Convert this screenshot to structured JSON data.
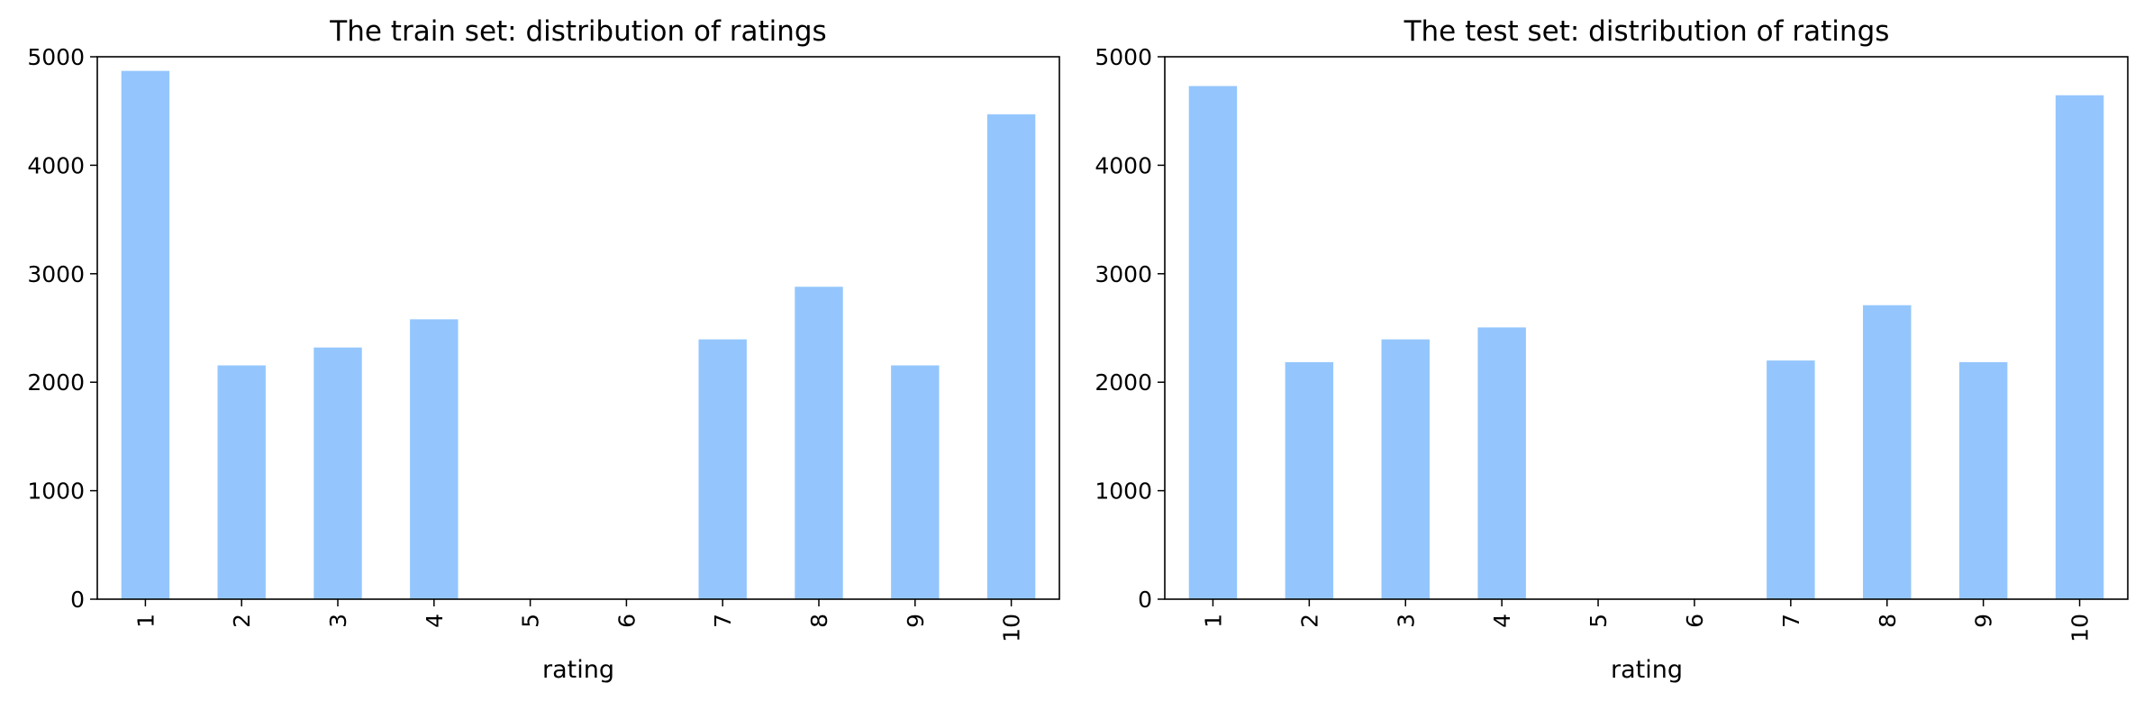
{
  "colors": {
    "bar": "#94c6fd",
    "axis": "#000000",
    "background": "#ffffff"
  },
  "chart_data": [
    {
      "type": "bar",
      "title": "The train set: distribution of ratings",
      "xlabel": "rating",
      "ylabel": "",
      "categories": [
        "1",
        "2",
        "3",
        "4",
        "5",
        "6",
        "7",
        "8",
        "9",
        "10"
      ],
      "values": [
        4870,
        2155,
        2320,
        2580,
        0,
        0,
        2395,
        2880,
        2155,
        4470
      ],
      "ylim": [
        0,
        5000
      ],
      "yticks": [
        0,
        1000,
        2000,
        3000,
        4000,
        5000
      ],
      "grid": false,
      "legend": false
    },
    {
      "type": "bar",
      "title": "The test set: distribution of ratings",
      "xlabel": "rating",
      "ylabel": "",
      "categories": [
        "1",
        "2",
        "3",
        "4",
        "5",
        "6",
        "7",
        "8",
        "9",
        "10"
      ],
      "values": [
        4730,
        2185,
        2395,
        2505,
        0,
        0,
        2200,
        2710,
        2185,
        4645
      ],
      "ylim": [
        0,
        5000
      ],
      "yticks": [
        0,
        1000,
        2000,
        3000,
        4000,
        5000
      ],
      "grid": false,
      "legend": false
    }
  ]
}
